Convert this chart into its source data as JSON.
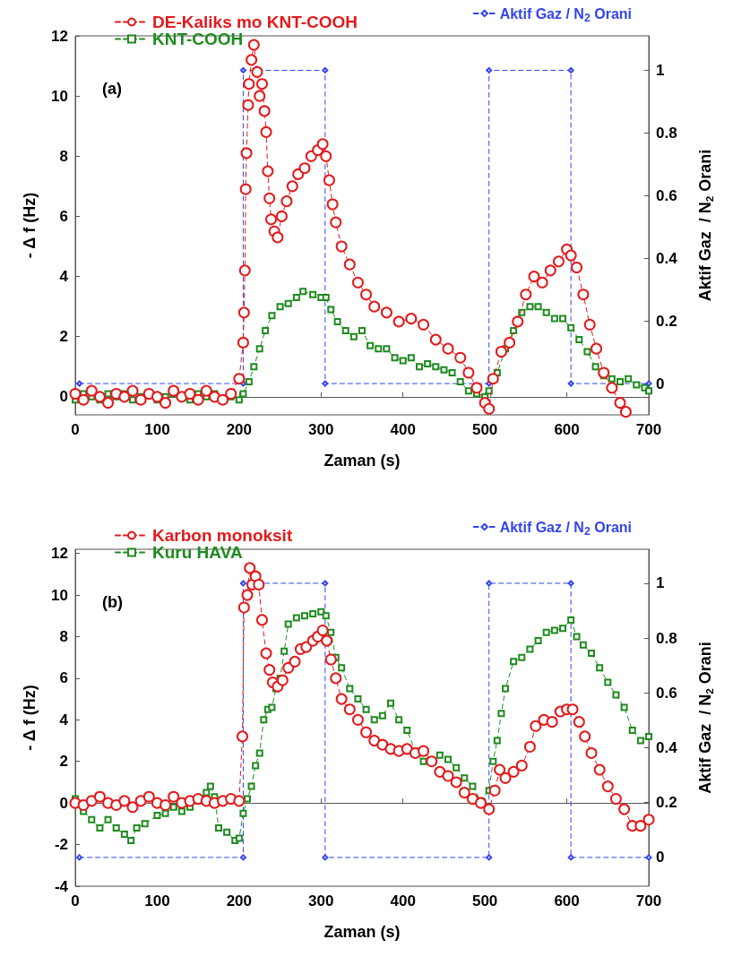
{
  "chart_data": [
    {
      "type": "line",
      "xlabel": "Zaman (s)",
      "ylabel": "- Δ f (Hz)",
      "y2label": "Aktif Gaz  / N$_{2}$ Orani",
      "annotations": [
        "(a)"
      ],
      "xlim": [
        0,
        700
      ],
      "xticks": [
        0,
        100,
        200,
        300,
        400,
        500,
        600,
        700
      ],
      "ylim": [
        -0.6,
        12
      ],
      "yticks": [
        0,
        2,
        4,
        6,
        8,
        10,
        12
      ],
      "y2lim": [
        -0.1,
        1.11
      ],
      "y2ticks": [
        0,
        0.2,
        0.4,
        0.6,
        0.8,
        1
      ],
      "legend": "top",
      "series": [
        {
          "name": "DE-Kaliks mo KNT-COOH",
          "color": "#e31a1c",
          "marker": "circle",
          "line_style": "dashed",
          "x": [
            0,
            10,
            20,
            30,
            40,
            50,
            60,
            70,
            80,
            90,
            100,
            110,
            120,
            130,
            140,
            150,
            160,
            170,
            180,
            190,
            200,
            205,
            206,
            207,
            208,
            209,
            211,
            212,
            215,
            218,
            222,
            225,
            228,
            231,
            233,
            235,
            237,
            239,
            243,
            247,
            252,
            258,
            265,
            272,
            280,
            288,
            296,
            302,
            306,
            310,
            314,
            318,
            325,
            335,
            345,
            355,
            365,
            380,
            395,
            410,
            425,
            440,
            455,
            470,
            480,
            490,
            500,
            505,
            510,
            520,
            530,
            540,
            550,
            560,
            570,
            580,
            590,
            600,
            605,
            612,
            620,
            628,
            636,
            645,
            655,
            665,
            672
          ],
          "values": [
            0.1,
            -0.1,
            0.2,
            0,
            -0.2,
            0.1,
            0,
            0.2,
            -0.1,
            0.1,
            0,
            -0.2,
            0.2,
            0,
            0.1,
            -0.1,
            0.2,
            0,
            -0.1,
            0.1,
            0.6,
            1.8,
            2.8,
            4.2,
            6.9,
            8.1,
            9.7,
            10.4,
            11.2,
            11.7,
            10.8,
            10.0,
            10.4,
            9.5,
            8.8,
            7.5,
            6.6,
            5.9,
            5.5,
            5.3,
            6.0,
            6.5,
            7.0,
            7.4,
            7.6,
            8.0,
            8.2,
            8.4,
            8.0,
            7.2,
            6.4,
            5.8,
            5.0,
            4.4,
            3.8,
            3.4,
            3.0,
            2.8,
            2.5,
            2.6,
            2.4,
            1.9,
            1.6,
            1.3,
            0.8,
            0.3,
            -0.2,
            -0.4,
            0.6,
            1.5,
            1.8,
            2.5,
            3.4,
            4.0,
            3.8,
            4.2,
            4.5,
            4.9,
            4.7,
            4.3,
            3.4,
            2.4,
            1.6,
            0.8,
            0.3,
            -0.2,
            -0.5
          ]
        },
        {
          "name": "KNT-COOH",
          "color": "#1f8a1f",
          "marker": "square",
          "line_style": "dashed",
          "x": [
            0,
            10,
            20,
            30,
            40,
            50,
            60,
            70,
            80,
            90,
            100,
            110,
            120,
            130,
            140,
            150,
            160,
            170,
            180,
            190,
            200,
            205,
            212,
            218,
            225,
            232,
            240,
            250,
            260,
            270,
            278,
            290,
            300,
            306,
            312,
            320,
            330,
            340,
            350,
            360,
            370,
            380,
            390,
            400,
            410,
            420,
            430,
            440,
            450,
            460,
            470,
            480,
            490,
            500,
            505,
            515,
            525,
            535,
            545,
            555,
            565,
            575,
            585,
            595,
            605,
            615,
            625,
            635,
            645,
            655,
            665,
            675,
            685,
            695,
            700
          ],
          "values": [
            -0.1,
            0.1,
            0,
            -0.1,
            0.1,
            0,
            0.1,
            -0.1,
            0,
            0.1,
            -0.1,
            0,
            0.1,
            0,
            -0.1,
            0.1,
            0,
            0.1,
            -0.1,
            0,
            -0.1,
            0.1,
            0.5,
            1.0,
            1.6,
            2.2,
            2.7,
            3.0,
            3.1,
            3.3,
            3.5,
            3.4,
            3.3,
            3.3,
            2.9,
            2.5,
            2.2,
            2.0,
            2.2,
            1.7,
            1.6,
            1.6,
            1.3,
            1.2,
            1.3,
            1.0,
            1.1,
            1.0,
            0.9,
            0.8,
            0.5,
            0.2,
            0.1,
            0.0,
            0.2,
            0.8,
            1.6,
            2.2,
            2.8,
            3.0,
            3.0,
            2.8,
            2.6,
            2.6,
            2.3,
            1.9,
            1.5,
            1.0,
            0.7,
            0.6,
            0.5,
            0.6,
            0.4,
            0.3,
            0.2
          ]
        },
        {
          "name": "Aktif Gaz / N$_{2}$ Orani",
          "color": "#3344ee",
          "marker": "diamond",
          "line_style": "dashed",
          "axis": "y2",
          "x": [
            5,
            205,
            205,
            305,
            305,
            505,
            505,
            605,
            605,
            700
          ],
          "values": [
            0,
            0,
            1,
            1,
            0,
            0,
            1,
            1,
            0,
            0
          ]
        }
      ]
    },
    {
      "type": "line",
      "xlabel": "Zaman (s)",
      "ylabel": "- Δ f (Hz)",
      "y2label": "Aktif Gaz  / N$_{2}$ Orani",
      "annotations": [
        "(b)"
      ],
      "xlim": [
        0,
        700
      ],
      "xticks": [
        0,
        100,
        200,
        300,
        400,
        500,
        600,
        700
      ],
      "ylim": [
        -4,
        12.2
      ],
      "yticks": [
        -4,
        -2,
        0,
        2,
        4,
        6,
        8,
        10,
        12
      ],
      "y2lim": [
        -0.105,
        1.124
      ],
      "y2ticks": [
        0,
        0.2,
        0.4,
        0.6,
        0.8,
        1
      ],
      "legend": "top",
      "series": [
        {
          "name": "Karbon monoksit",
          "color": "#e31a1c",
          "marker": "circle",
          "line_style": "dashed",
          "x": [
            0,
            10,
            20,
            30,
            40,
            50,
            60,
            70,
            80,
            90,
            100,
            110,
            120,
            130,
            140,
            150,
            160,
            170,
            180,
            190,
            200,
            204,
            206,
            210,
            213,
            216,
            220,
            224,
            228,
            233,
            237,
            241,
            247,
            253,
            260,
            268,
            275,
            282,
            290,
            296,
            302,
            307,
            312,
            318,
            325,
            335,
            345,
            355,
            365,
            375,
            385,
            395,
            405,
            415,
            425,
            435,
            445,
            455,
            465,
            475,
            485,
            495,
            505,
            512,
            518,
            525,
            535,
            545,
            555,
            562,
            572,
            582,
            592,
            600,
            607,
            615,
            622,
            630,
            640,
            650,
            660,
            670,
            680,
            690,
            700
          ],
          "values": [
            0,
            -0.1,
            0.1,
            0.3,
            0.0,
            -0.1,
            0.1,
            -0.2,
            0.1,
            0.3,
            0.0,
            -0.1,
            0.3,
            0.0,
            0.1,
            0.2,
            0.1,
            0.0,
            0.1,
            0.2,
            0.1,
            3.2,
            9.4,
            10.0,
            11.3,
            10.5,
            10.9,
            10.5,
            8.8,
            7.2,
            6.4,
            5.8,
            5.6,
            5.9,
            6.5,
            6.8,
            7.4,
            7.5,
            7.8,
            8.0,
            8.3,
            7.8,
            6.9,
            6.0,
            5.0,
            4.5,
            4.0,
            3.4,
            3.0,
            2.8,
            2.6,
            2.5,
            2.6,
            2.4,
            2.5,
            2.0,
            1.5,
            1.3,
            1.0,
            0.5,
            0.2,
            0.0,
            -0.3,
            0.6,
            1.6,
            1.2,
            1.5,
            1.8,
            2.7,
            3.7,
            4.0,
            3.9,
            4.4,
            4.5,
            4.5,
            3.9,
            3.2,
            2.4,
            1.6,
            0.8,
            0.2,
            -0.3,
            -1.1,
            -1.1,
            -0.8
          ]
        },
        {
          "name": "Kuru HAVA",
          "color": "#1f8a1f",
          "marker": "square",
          "line_style": "dashed",
          "x": [
            0,
            10,
            20,
            30,
            40,
            50,
            60,
            68,
            75,
            85,
            100,
            110,
            120,
            130,
            140,
            150,
            160,
            165,
            170,
            175,
            185,
            195,
            200,
            205,
            210,
            215,
            220,
            225,
            230,
            235,
            240,
            245,
            250,
            255,
            260,
            270,
            280,
            290,
            300,
            306,
            312,
            318,
            325,
            335,
            345,
            355,
            365,
            375,
            385,
            395,
            405,
            415,
            425,
            435,
            445,
            455,
            465,
            475,
            485,
            495,
            505,
            510,
            515,
            520,
            525,
            535,
            545,
            555,
            565,
            575,
            585,
            595,
            605,
            612,
            620,
            630,
            640,
            650,
            660,
            670,
            680,
            690,
            700
          ],
          "values": [
            0.2,
            -0.4,
            -0.8,
            -1.2,
            -0.8,
            -1.2,
            -1.5,
            -1.8,
            -1.2,
            -1.0,
            -0.6,
            -0.5,
            -0.2,
            -0.4,
            -0.2,
            0.1,
            0.5,
            0.8,
            0.3,
            -1.2,
            -1.4,
            -1.8,
            -1.7,
            -0.5,
            0.2,
            0.8,
            1.8,
            2.4,
            4.0,
            4.5,
            4.6,
            5.5,
            6.0,
            7.3,
            8.6,
            8.9,
            9.0,
            9.1,
            9.2,
            9.0,
            8.2,
            7.0,
            6.5,
            5.5,
            5.0,
            4.5,
            4.0,
            4.2,
            4.8,
            4.0,
            3.5,
            2.5,
            2.0,
            2.0,
            2.3,
            2.1,
            1.7,
            1.2,
            0.8,
            0.1,
            0.6,
            2.0,
            3.0,
            4.3,
            5.5,
            6.8,
            7.0,
            7.4,
            7.8,
            8.2,
            8.3,
            8.4,
            8.8,
            8.0,
            7.6,
            7.2,
            6.5,
            5.8,
            5.2,
            4.6,
            3.5,
            3.0,
            3.2
          ]
        },
        {
          "name": "Aktif Gaz / N$_{2}$ Orani",
          "color": "#3344ee",
          "marker": "diamond",
          "line_style": "dashed",
          "axis": "y2",
          "x": [
            5,
            205,
            205,
            305,
            305,
            505,
            505,
            605,
            605,
            700
          ],
          "values": [
            0,
            0,
            1,
            1,
            0,
            0,
            1,
            1,
            0,
            0
          ]
        }
      ]
    }
  ]
}
